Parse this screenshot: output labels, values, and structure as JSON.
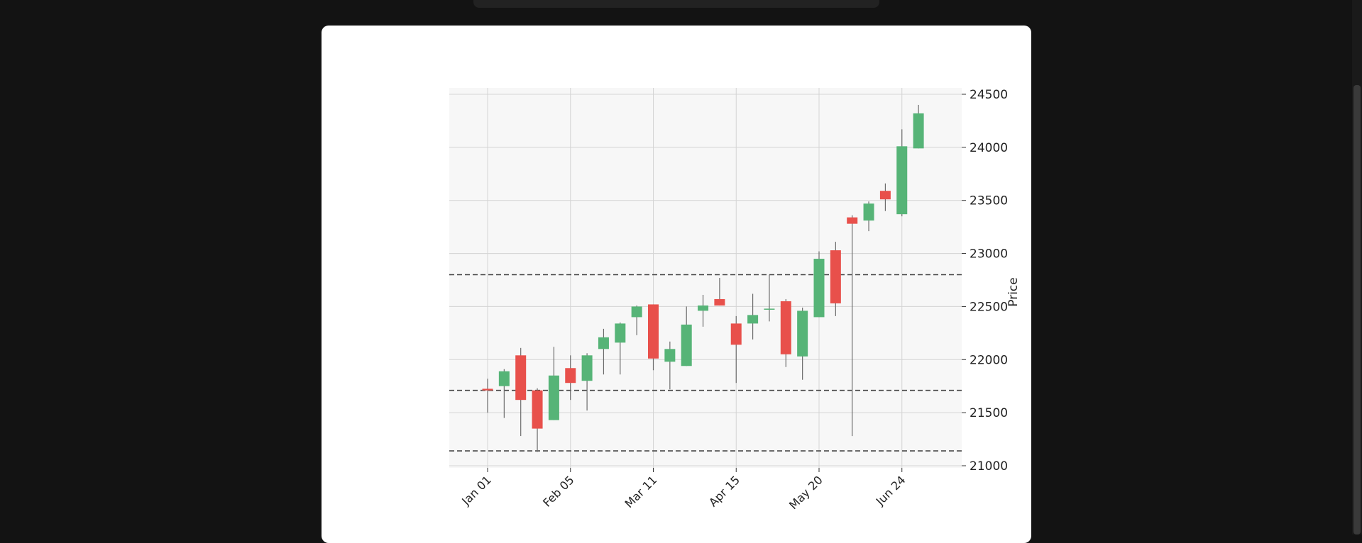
{
  "chart_data": {
    "type": "candlestick",
    "ylabel": "Price",
    "ylim": [
      20980,
      24560
    ],
    "yticks": [
      21000,
      21500,
      22000,
      22500,
      23000,
      23500,
      24000,
      24500
    ],
    "xtick_labels": [
      "Jan 01",
      "Feb 05",
      "Mar 11",
      "Apr 15",
      "May 20",
      "Jun 24"
    ],
    "xtick_indices": [
      0,
      5,
      10,
      15,
      20,
      25
    ],
    "grid": true,
    "up_color": "#56b477",
    "down_color": "#e8504b",
    "hlines": [
      22800,
      21710,
      21140
    ],
    "candles": [
      {
        "date": "Jan 01",
        "open": 21725,
        "high": 21820,
        "low": 21500,
        "close": 21710
      },
      {
        "date": "Jan 08",
        "open": 21750,
        "high": 21910,
        "low": 21450,
        "close": 21890
      },
      {
        "date": "Jan 15",
        "open": 22040,
        "high": 22110,
        "low": 21280,
        "close": 21620
      },
      {
        "date": "Jan 22",
        "open": 21710,
        "high": 21730,
        "low": 21130,
        "close": 21350
      },
      {
        "date": "Jan 29",
        "open": 21430,
        "high": 22120,
        "low": 21430,
        "close": 21850
      },
      {
        "date": "Feb 05",
        "open": 21920,
        "high": 22040,
        "low": 21620,
        "close": 21780
      },
      {
        "date": "Feb 12",
        "open": 21800,
        "high": 22060,
        "low": 21520,
        "close": 22040
      },
      {
        "date": "Feb 19",
        "open": 22100,
        "high": 22290,
        "low": 21860,
        "close": 22210
      },
      {
        "date": "Feb 26",
        "open": 22160,
        "high": 22350,
        "low": 21860,
        "close": 22340
      },
      {
        "date": "Mar 04",
        "open": 22400,
        "high": 22510,
        "low": 22230,
        "close": 22500
      },
      {
        "date": "Mar 11",
        "open": 22520,
        "high": 22520,
        "low": 21900,
        "close": 22010
      },
      {
        "date": "Mar 18",
        "open": 21980,
        "high": 22170,
        "low": 21720,
        "close": 22100
      },
      {
        "date": "Mar 25",
        "open": 21940,
        "high": 22500,
        "low": 21940,
        "close": 22330
      },
      {
        "date": "Apr 01",
        "open": 22460,
        "high": 22610,
        "low": 22310,
        "close": 22510
      },
      {
        "date": "Apr 08",
        "open": 22570,
        "high": 22770,
        "low": 22510,
        "close": 22510
      },
      {
        "date": "Apr 15",
        "open": 22340,
        "high": 22410,
        "low": 21780,
        "close": 22140
      },
      {
        "date": "Apr 22",
        "open": 22340,
        "high": 22620,
        "low": 22190,
        "close": 22420
      },
      {
        "date": "Apr 29",
        "open": 22470,
        "high": 22800,
        "low": 22360,
        "close": 22480
      },
      {
        "date": "May 06",
        "open": 22550,
        "high": 22570,
        "low": 21930,
        "close": 22050
      },
      {
        "date": "May 13",
        "open": 22030,
        "high": 22490,
        "low": 21810,
        "close": 22460
      },
      {
        "date": "May 20",
        "open": 22400,
        "high": 23020,
        "low": 22400,
        "close": 22950
      },
      {
        "date": "May 27",
        "open": 23030,
        "high": 23110,
        "low": 22410,
        "close": 22530
      },
      {
        "date": "Jun 03",
        "open": 23340,
        "high": 23360,
        "low": 21280,
        "close": 23280
      },
      {
        "date": "Jun 10",
        "open": 23310,
        "high": 23490,
        "low": 23210,
        "close": 23470
      },
      {
        "date": "Jun 17",
        "open": 23590,
        "high": 23660,
        "low": 23400,
        "close": 23510
      },
      {
        "date": "Jun 24",
        "open": 23370,
        "high": 24170,
        "low": 23350,
        "close": 24010
      },
      {
        "date": "Jul 01",
        "open": 23990,
        "high": 24400,
        "low": 23990,
        "close": 24320
      }
    ]
  }
}
